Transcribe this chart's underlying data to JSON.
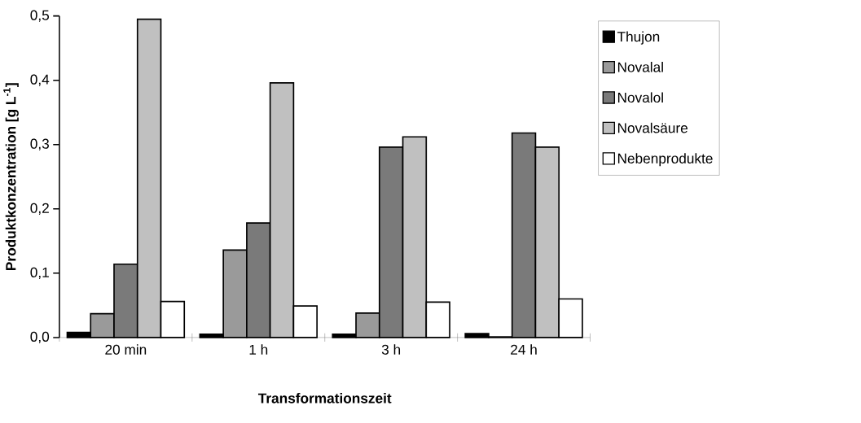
{
  "chart_data": {
    "type": "bar",
    "xlabel": "Transformationszeit",
    "ylabel": "Produktkonzentration [g L$^{-1}$]",
    "categories": [
      "20 min",
      "1 h",
      "3 h",
      "24 h"
    ],
    "series": [
      {
        "name": "Thujon",
        "color": "#000000",
        "values": [
          0.008,
          0.005,
          0.005,
          0.006
        ]
      },
      {
        "name": "Novalal",
        "color": "#9a9a9a",
        "values": [
          0.037,
          0.136,
          0.038,
          0.001
        ]
      },
      {
        "name": "Novalol",
        "color": "#7a7a7a",
        "values": [
          0.114,
          0.178,
          0.296,
          0.318
        ]
      },
      {
        "name": "Novalsäure",
        "color": "#c0c0c0",
        "values": [
          0.495,
          0.396,
          0.312,
          0.296
        ]
      },
      {
        "name": "Nebenprodukte",
        "color": "#ffffff",
        "values": [
          0.056,
          0.049,
          0.055,
          0.06
        ]
      }
    ],
    "ylim": [
      0,
      0.5
    ],
    "yticks": [
      {
        "value": 0,
        "label": "0,0"
      },
      {
        "value": 0.1,
        "label": "0,1"
      },
      {
        "value": 0.2,
        "label": "0,2"
      },
      {
        "value": 0.3,
        "label": "0,3"
      },
      {
        "value": 0.4,
        "label": "0,4"
      },
      {
        "value": 0.5,
        "label": "0,5"
      }
    ],
    "grid": false,
    "legend": "right"
  }
}
